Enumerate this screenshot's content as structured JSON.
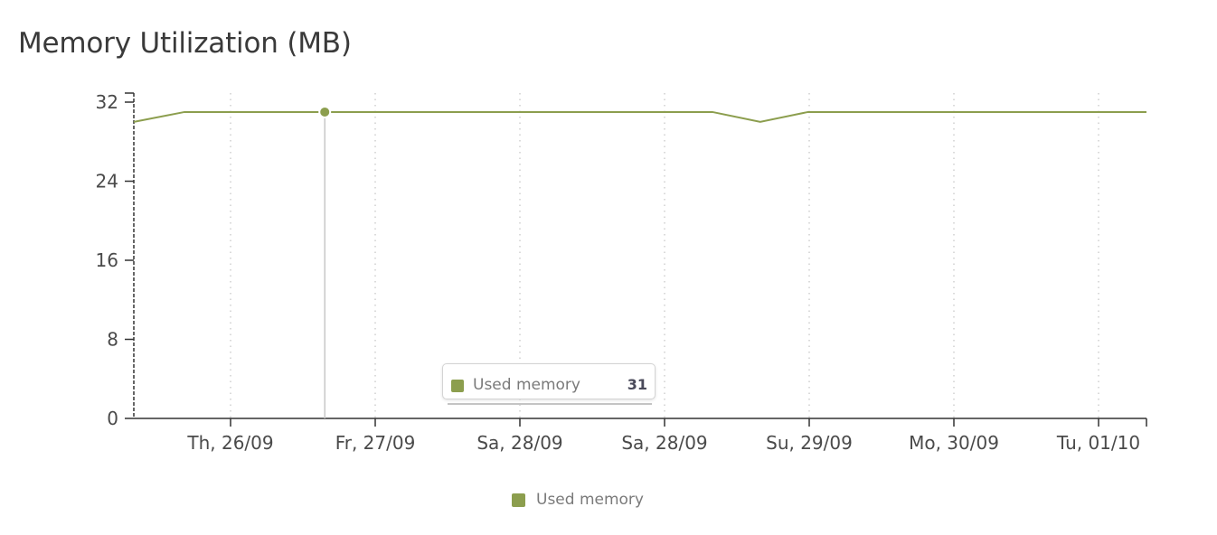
{
  "panel": {
    "title": "Memory Utilization (MB)"
  },
  "colors": {
    "series": "#8c9e4e",
    "axis": "#333333",
    "grid": "#cfcfcf",
    "cursor": "#c8c8c8"
  },
  "tooltip": {
    "label": "Used memory",
    "value": "31"
  },
  "legend": {
    "label": "Used memory"
  },
  "chart_data": {
    "type": "line",
    "title": "Memory Utilization (MB)",
    "xlabel": "",
    "ylabel": "",
    "ylim": [
      0,
      32
    ],
    "yticks": [
      0,
      8,
      16,
      24,
      32
    ],
    "xticks": [
      "Th, 26/09",
      "Fr, 27/09",
      "Sa, 28/09",
      "Sa, 28/09",
      "Su, 29/09",
      "Mo, 30/09",
      "Tu, 01/10"
    ],
    "grid": "vertical-dotted",
    "legend_position": "bottom-center",
    "series": [
      {
        "name": "Used memory",
        "points": [
          {
            "t": 0.0,
            "value": 30
          },
          {
            "t": 0.35,
            "value": 31
          },
          {
            "t": 1.32,
            "value": 31
          },
          {
            "t": 2.0,
            "value": 31
          },
          {
            "t": 4.0,
            "value": 31
          },
          {
            "t": 4.33,
            "value": 30
          },
          {
            "t": 4.66,
            "value": 31
          },
          {
            "t": 7.0,
            "value": 31
          }
        ]
      }
    ],
    "highlight": {
      "t": 1.32,
      "value": 31
    }
  }
}
